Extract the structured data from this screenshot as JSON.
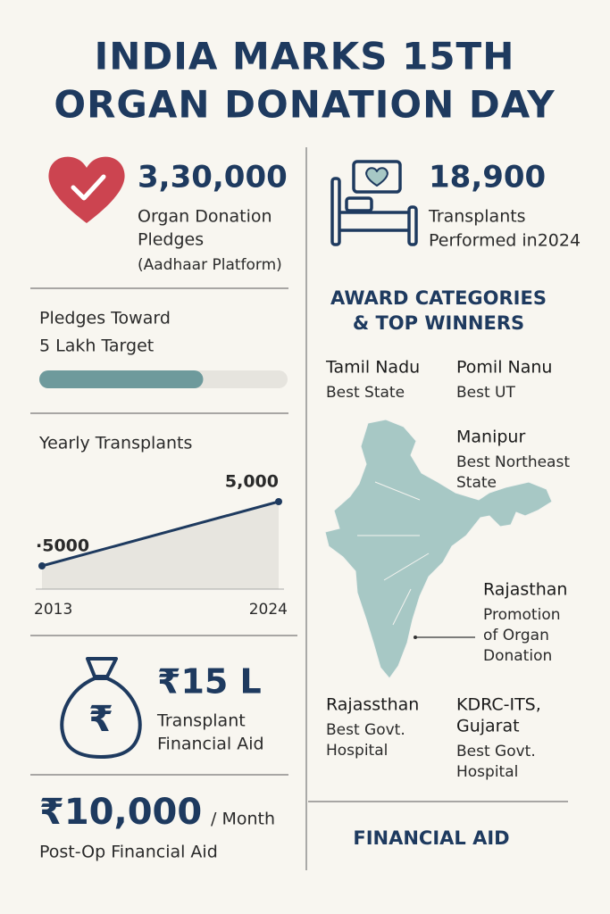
{
  "title_lines": [
    "INDIA MARKS 15TH",
    "ORGAN DONATION DAY"
  ],
  "pledges": {
    "value": "3,30,000",
    "label_lines": [
      "Organ Donation",
      "Pledges",
      "(Aadhaar Platform)"
    ]
  },
  "transplants": {
    "value": "18,900",
    "label_lines": [
      "Transplants",
      "Performed in2024"
    ]
  },
  "target": {
    "label_lines": [
      "Pledges Toward",
      "5 Lakh Target"
    ],
    "progress_percent": 66
  },
  "yearly_chart": {
    "title": "Yearly Transplants",
    "start_label": "·5000",
    "end_label": "5,000",
    "x_labels": [
      "2013",
      "2024"
    ]
  },
  "aid": {
    "value": "₹15 L",
    "label_lines": [
      "Transplant",
      "Financial Aid"
    ]
  },
  "monthly_aid": {
    "value": "₹10,000",
    "unit": "/ Month",
    "label": "Post-Op Financial Aid"
  },
  "awards": {
    "heading_lines": [
      "AWARD CATEGORIES",
      "& TOP WINNERS"
    ],
    "winners": [
      {
        "name_lines": [
          "Tamil Nadu"
        ],
        "category_lines": [
          "Best State"
        ]
      },
      {
        "name_lines": [
          "Pomil Nanu"
        ],
        "category_lines": [
          "Best UT"
        ]
      },
      {
        "name_lines": [
          "Manipur"
        ],
        "category_lines": [
          "Best Northeast",
          "State"
        ]
      },
      {
        "name_lines": [
          "Rajasthan"
        ],
        "category_lines": [
          "Promotion",
          "of Organ",
          "Donation"
        ]
      },
      {
        "name_lines": [
          "Rajassthan"
        ],
        "category_lines": [
          "Best Govt.",
          "Hospital"
        ]
      },
      {
        "name_lines": [
          "KDRC-ITS,",
          "Gujarat"
        ],
        "category_lines": [
          "Best Govt.",
          "Hospital"
        ]
      }
    ]
  },
  "footer": "FINANCIAL AID"
}
